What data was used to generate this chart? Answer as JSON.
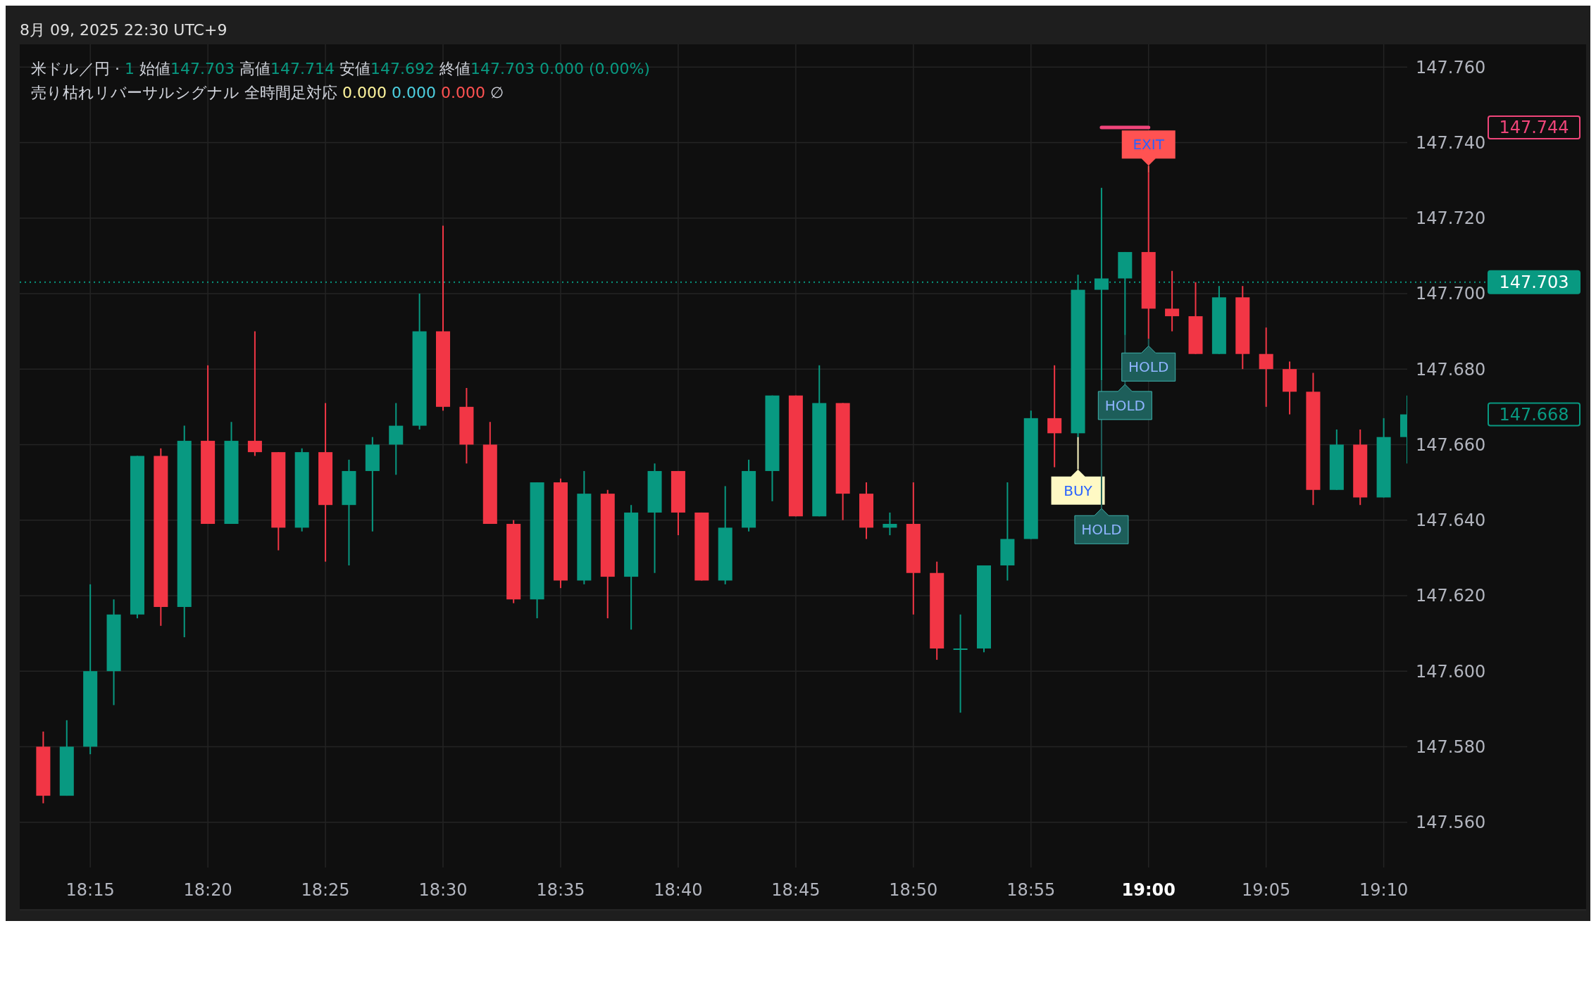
{
  "chart_data": {
    "type": "candlestick",
    "title": "米ドル／円 · 1  始値147.703  高値147.714  安値147.692  終値147.703  0.000 (0.00%)",
    "subtitle": "売り枯れリバーサルシグナル 全時間足対応  0.000  0.000  0.000  ∅",
    "x": [
      "2025-08-09T18:13",
      "2025-08-09T18:14",
      "2025-08-09T18:15",
      "2025-08-09T18:16",
      "2025-08-09T18:17",
      "2025-08-09T18:18",
      "2025-08-09T18:19",
      "2025-08-09T18:20",
      "2025-08-09T18:21",
      "2025-08-09T18:22",
      "2025-08-09T18:23",
      "2025-08-09T18:24",
      "2025-08-09T18:25",
      "2025-08-09T18:26",
      "2025-08-09T18:27",
      "2025-08-09T18:28",
      "2025-08-09T18:29",
      "2025-08-09T18:30",
      "2025-08-09T18:31",
      "2025-08-09T18:32",
      "2025-08-09T18:33",
      "2025-08-09T18:34",
      "2025-08-09T18:35",
      "2025-08-09T18:36",
      "2025-08-09T18:37",
      "2025-08-09T18:38",
      "2025-08-09T18:39",
      "2025-08-09T18:40",
      "2025-08-09T18:41",
      "2025-08-09T18:42",
      "2025-08-09T18:43",
      "2025-08-09T18:44",
      "2025-08-09T18:45",
      "2025-08-09T18:46",
      "2025-08-09T18:47",
      "2025-08-09T18:48",
      "2025-08-09T18:49",
      "2025-08-09T18:50",
      "2025-08-09T18:51",
      "2025-08-09T18:52",
      "2025-08-09T18:53",
      "2025-08-09T18:54",
      "2025-08-09T18:55",
      "2025-08-09T18:56",
      "2025-08-09T18:57",
      "2025-08-09T18:58",
      "2025-08-09T18:59",
      "2025-08-09T19:00",
      "2025-08-09T19:01",
      "2025-08-09T19:02",
      "2025-08-09T19:03",
      "2025-08-09T19:04",
      "2025-08-09T19:05",
      "2025-08-09T19:06",
      "2025-08-09T19:07",
      "2025-08-09T19:08",
      "2025-08-09T19:09",
      "2025-08-09T19:10",
      "2025-08-09T19:11"
    ],
    "ohlc": [
      [
        147.58,
        147.584,
        147.565,
        147.567
      ],
      [
        147.567,
        147.587,
        147.567,
        147.58
      ],
      [
        147.58,
        147.623,
        147.578,
        147.6
      ],
      [
        147.6,
        147.619,
        147.591,
        147.615
      ],
      [
        147.615,
        147.657,
        147.614,
        147.657
      ],
      [
        147.657,
        147.659,
        147.612,
        147.617
      ],
      [
        147.617,
        147.665,
        147.609,
        147.661
      ],
      [
        147.661,
        147.681,
        147.639,
        147.639
      ],
      [
        147.639,
        147.666,
        147.639,
        147.661
      ],
      [
        147.661,
        147.69,
        147.657,
        147.658
      ],
      [
        147.658,
        147.658,
        147.632,
        147.638
      ],
      [
        147.638,
        147.659,
        147.637,
        147.658
      ],
      [
        147.658,
        147.671,
        147.629,
        147.644
      ],
      [
        147.644,
        147.656,
        147.628,
        147.653
      ],
      [
        147.653,
        147.662,
        147.637,
        147.66
      ],
      [
        147.66,
        147.671,
        147.652,
        147.665
      ],
      [
        147.665,
        147.7,
        147.664,
        147.69
      ],
      [
        147.69,
        147.718,
        147.669,
        147.67
      ],
      [
        147.67,
        147.675,
        147.655,
        147.66
      ],
      [
        147.66,
        147.666,
        147.639,
        147.639
      ],
      [
        147.639,
        147.64,
        147.618,
        147.619
      ],
      [
        147.619,
        147.65,
        147.614,
        147.65
      ],
      [
        147.65,
        147.651,
        147.622,
        147.624
      ],
      [
        147.624,
        147.653,
        147.623,
        147.647
      ],
      [
        147.647,
        147.648,
        147.614,
        147.625
      ],
      [
        147.625,
        147.644,
        147.611,
        147.642
      ],
      [
        147.642,
        147.655,
        147.626,
        147.653
      ],
      [
        147.653,
        147.653,
        147.636,
        147.642
      ],
      [
        147.642,
        147.642,
        147.624,
        147.624
      ],
      [
        147.624,
        147.649,
        147.623,
        147.638
      ],
      [
        147.638,
        147.656,
        147.637,
        147.653
      ],
      [
        147.653,
        147.673,
        147.645,
        147.673
      ],
      [
        147.673,
        147.673,
        147.641,
        147.641
      ],
      [
        147.641,
        147.681,
        147.641,
        147.671
      ],
      [
        147.671,
        147.671,
        147.64,
        147.647
      ],
      [
        147.647,
        147.65,
        147.635,
        147.638
      ],
      [
        147.638,
        147.642,
        147.636,
        147.639
      ],
      [
        147.639,
        147.65,
        147.615,
        147.626
      ],
      [
        147.626,
        147.629,
        147.603,
        147.606
      ],
      [
        147.606,
        147.615,
        147.589,
        147.606
      ],
      [
        147.606,
        147.628,
        147.605,
        147.628
      ],
      [
        147.628,
        147.65,
        147.624,
        147.635
      ],
      [
        147.635,
        147.669,
        147.635,
        147.667
      ],
      [
        147.667,
        147.681,
        147.654,
        147.663
      ],
      [
        147.663,
        147.705,
        147.662,
        147.701
      ],
      [
        147.701,
        147.728,
        147.677,
        147.704
      ],
      [
        147.704,
        147.711,
        147.689,
        147.711
      ],
      [
        147.711,
        147.732,
        147.688,
        147.696
      ],
      [
        147.696,
        147.706,
        147.69,
        147.694
      ],
      [
        147.694,
        147.703,
        147.684,
        147.684
      ],
      [
        147.684,
        147.702,
        147.684,
        147.699
      ],
      [
        147.699,
        147.702,
        147.68,
        147.684
      ],
      [
        147.684,
        147.691,
        147.67,
        147.68
      ],
      [
        147.68,
        147.682,
        147.668,
        147.674
      ],
      [
        147.674,
        147.679,
        147.644,
        147.648
      ],
      [
        147.648,
        147.664,
        147.648,
        147.66
      ],
      [
        147.66,
        147.664,
        147.644,
        147.646
      ],
      [
        147.646,
        147.667,
        147.646,
        147.662
      ],
      [
        147.662,
        147.673,
        147.655,
        147.668
      ]
    ],
    "series": [
      {
        "type": "line",
        "color": "#f0457a",
        "x": [
          "2025-08-09T18:58",
          "2025-08-09T19:00"
        ],
        "values": [
          147.744,
          147.744
        ]
      }
    ],
    "xlim": [
      "2025-08-09T18:12",
      "2025-08-09T19:11"
    ],
    "xticks": [
      {
        "value": "2025-08-09T18:15",
        "label": "18:15"
      },
      {
        "value": "2025-08-09T18:20",
        "label": "18:20"
      },
      {
        "value": "2025-08-09T18:25",
        "label": "18:25"
      },
      {
        "value": "2025-08-09T18:30",
        "label": "18:30"
      },
      {
        "value": "2025-08-09T18:35",
        "label": "18:35"
      },
      {
        "value": "2025-08-09T18:40",
        "label": "18:40"
      },
      {
        "value": "2025-08-09T18:45",
        "label": "18:45"
      },
      {
        "value": "2025-08-09T18:50",
        "label": "18:50"
      },
      {
        "value": "2025-08-09T18:55",
        "label": "18:55"
      },
      {
        "value": "2025-08-09T19:00",
        "label": "19:00"
      },
      {
        "value": "2025-08-09T19:05",
        "label": "19:05"
      },
      {
        "value": "2025-08-09T19:10",
        "label": "19:10"
      }
    ],
    "ylim": [
      147.548,
      147.766
    ],
    "yticks": [
      {
        "value": 147.56,
        "label": "147.560"
      },
      {
        "value": 147.58,
        "label": "147.580"
      },
      {
        "value": 147.6,
        "label": "147.600"
      },
      {
        "value": 147.62,
        "label": "147.620"
      },
      {
        "value": 147.64,
        "label": "147.640"
      },
      {
        "value": 147.66,
        "label": "147.660"
      },
      {
        "value": 147.68,
        "label": "147.680"
      },
      {
        "value": 147.7,
        "label": "147.700"
      },
      {
        "value": 147.72,
        "label": "147.720"
      },
      {
        "value": 147.74,
        "label": "147.740"
      },
      {
        "value": 147.76,
        "label": "147.760"
      }
    ],
    "grid": true,
    "ref_lines": [
      {
        "axis": "y",
        "value": 147.703,
        "label": "147.703",
        "color": "#089981",
        "line_style": "dotted"
      }
    ],
    "annotations": [
      "8月 09, 2025 22:30 UTC+9",
      "147.744",
      "147.668",
      {
        "text": "BUY",
        "x": "2025-08-09T18:57",
        "y": 147.662
      },
      {
        "text": "HOLD",
        "x": "2025-08-09T18:58",
        "y": 147.677
      },
      {
        "text": "HOLD",
        "x": "2025-08-09T18:59",
        "y": 147.689
      },
      {
        "text": "HOLD",
        "x": "2025-08-09T19:00",
        "y": 147.688
      },
      {
        "text": "EXIT",
        "x": "2025-08-09T19:00",
        "y": 147.732
      }
    ]
  }
}
